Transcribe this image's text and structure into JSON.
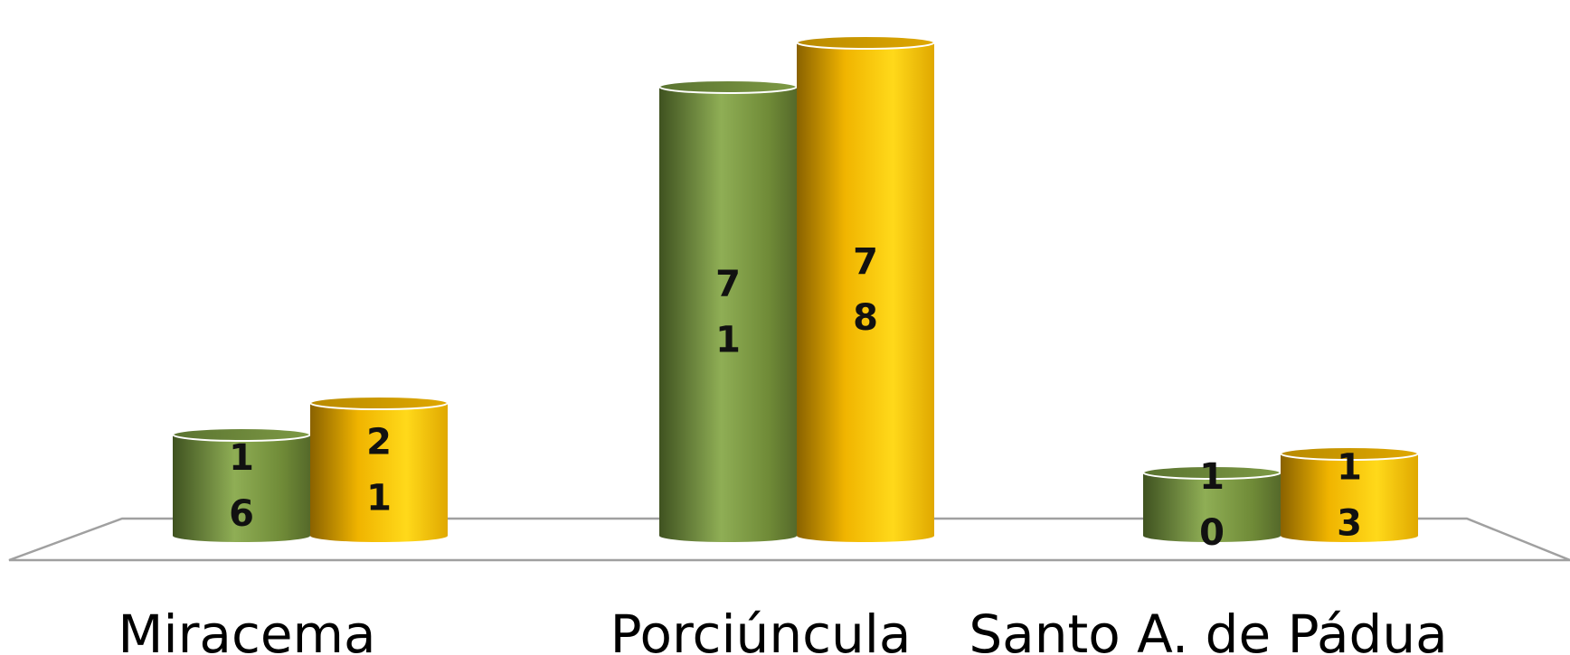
{
  "chart_data": {
    "type": "bar",
    "style": "3d-cylinder",
    "categories": [
      "Miracema",
      "Porciúncula",
      "Santo A. de Pádua"
    ],
    "series": [
      {
        "values": [
          16,
          71,
          10
        ],
        "color": "#76923C"
      },
      {
        "values": [
          21,
          78,
          13
        ],
        "color": "#FFC000"
      }
    ],
    "data_labels": [
      [
        "16",
        "71",
        "10"
      ],
      [
        "21",
        "78",
        "13"
      ]
    ],
    "ylim": [
      0,
      80
    ],
    "grid": false,
    "legend": "none"
  }
}
